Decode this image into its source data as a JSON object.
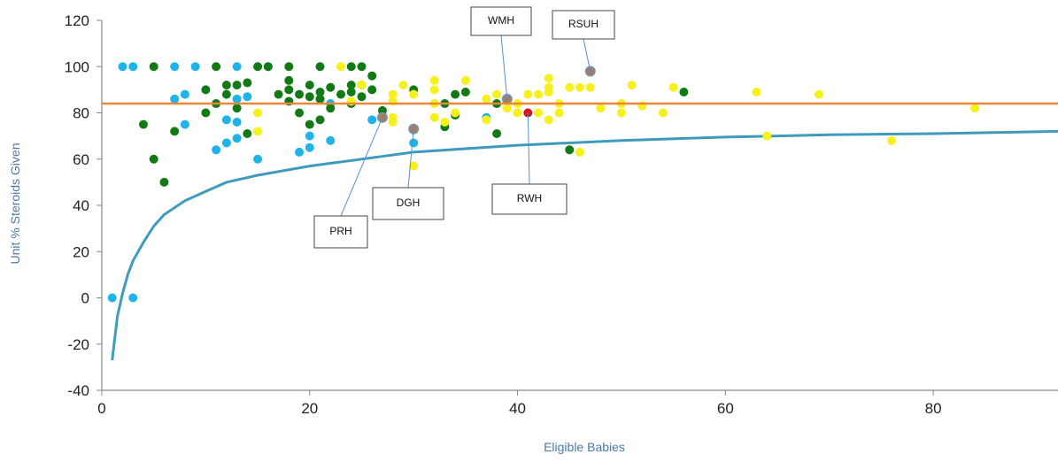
{
  "chart_data": {
    "type": "scatter",
    "title": "",
    "xlabel": "Eligible Babies",
    "ylabel": "Unit % Steroids Given",
    "xlim": [
      0,
      92
    ],
    "ylim": [
      -40,
      120
    ],
    "x_ticks": [
      "0",
      "20",
      "40",
      "60",
      "80"
    ],
    "x_tick_values": [
      0,
      20,
      40,
      60,
      80
    ],
    "y_ticks": [
      "120",
      "100",
      "80",
      "60",
      "40",
      "20",
      "0",
      "-20",
      "-40"
    ],
    "y_tick_values": [
      120,
      100,
      80,
      60,
      40,
      20,
      0,
      -20,
      -40
    ],
    "grid": false,
    "reference_line": {
      "value": 84,
      "color": "#e8873a"
    },
    "funnel_curve": {
      "color": "#3f9bbd",
      "points": [
        [
          1,
          -27
        ],
        [
          1.5,
          -8
        ],
        [
          2,
          2
        ],
        [
          2.5,
          10
        ],
        [
          3,
          16
        ],
        [
          4,
          24
        ],
        [
          5,
          31
        ],
        [
          6,
          36
        ],
        [
          8,
          42
        ],
        [
          10,
          46
        ],
        [
          12,
          50
        ],
        [
          15,
          53
        ],
        [
          20,
          57
        ],
        [
          25,
          60
        ],
        [
          30,
          63
        ],
        [
          40,
          66
        ],
        [
          50,
          68
        ],
        [
          60,
          69.5
        ],
        [
          70,
          70.5
        ],
        [
          80,
          71
        ],
        [
          92,
          72
        ]
      ]
    },
    "series": [
      {
        "color": "#1eb4ea",
        "points": [
          [
            1,
            0
          ],
          [
            3,
            0
          ],
          [
            2,
            100
          ],
          [
            3,
            100
          ],
          [
            7,
            100
          ],
          [
            9,
            100
          ],
          [
            13,
            100
          ],
          [
            16,
            100
          ],
          [
            7,
            86
          ],
          [
            8,
            88
          ],
          [
            8,
            75
          ],
          [
            11,
            64
          ],
          [
            12,
            67
          ],
          [
            13,
            69
          ],
          [
            12,
            77
          ],
          [
            13,
            76
          ],
          [
            15,
            60
          ],
          [
            19,
            63
          ],
          [
            20,
            65
          ],
          [
            20,
            70
          ],
          [
            22,
            68
          ],
          [
            13,
            86
          ],
          [
            14,
            87
          ],
          [
            22,
            84
          ],
          [
            26,
            77
          ],
          [
            30,
            67
          ],
          [
            37,
            78
          ]
        ]
      },
      {
        "color": "#127a14",
        "points": [
          [
            4,
            75
          ],
          [
            5,
            100
          ],
          [
            5,
            60
          ],
          [
            6,
            50
          ],
          [
            7,
            72
          ],
          [
            10,
            90
          ],
          [
            10,
            80
          ],
          [
            11,
            100
          ],
          [
            11,
            84
          ],
          [
            12,
            92
          ],
          [
            12,
            88
          ],
          [
            13,
            92
          ],
          [
            13,
            82
          ],
          [
            14,
            93
          ],
          [
            14,
            71
          ],
          [
            15,
            100
          ],
          [
            16,
            100
          ],
          [
            17,
            88
          ],
          [
            18,
            100
          ],
          [
            18,
            94
          ],
          [
            18,
            90
          ],
          [
            18,
            85
          ],
          [
            19,
            88
          ],
          [
            19,
            80
          ],
          [
            20,
            92
          ],
          [
            20,
            87
          ],
          [
            20,
            75
          ],
          [
            21,
            100
          ],
          [
            21,
            89
          ],
          [
            21,
            86
          ],
          [
            21,
            77
          ],
          [
            22,
            91
          ],
          [
            22,
            82
          ],
          [
            23,
            88
          ],
          [
            24,
            100
          ],
          [
            24,
            92
          ],
          [
            24,
            89
          ],
          [
            24,
            84
          ],
          [
            25,
            100
          ],
          [
            25,
            92
          ],
          [
            25,
            87
          ],
          [
            26,
            96
          ],
          [
            26,
            90
          ],
          [
            27,
            81
          ],
          [
            30,
            90
          ],
          [
            33,
            84
          ],
          [
            33,
            74
          ],
          [
            34,
            88
          ],
          [
            34,
            79
          ],
          [
            35,
            89
          ],
          [
            38,
            71
          ],
          [
            38,
            84
          ],
          [
            45,
            64
          ],
          [
            56,
            89
          ]
        ]
      },
      {
        "color": "#f6f01c",
        "points": [
          [
            15,
            80
          ],
          [
            15,
            72
          ],
          [
            23,
            100
          ],
          [
            24,
            85
          ],
          [
            25,
            92
          ],
          [
            28,
            88
          ],
          [
            28,
            85
          ],
          [
            28,
            78
          ],
          [
            28,
            76
          ],
          [
            29,
            92
          ],
          [
            30,
            88
          ],
          [
            30,
            57
          ],
          [
            32,
            94
          ],
          [
            32,
            90
          ],
          [
            32,
            84
          ],
          [
            32,
            78
          ],
          [
            33,
            76
          ],
          [
            34,
            80
          ],
          [
            35,
            94
          ],
          [
            37,
            86
          ],
          [
            37,
            77
          ],
          [
            38,
            88
          ],
          [
            39,
            82
          ],
          [
            40,
            84
          ],
          [
            40,
            80
          ],
          [
            41,
            88
          ],
          [
            42,
            88
          ],
          [
            42,
            80
          ],
          [
            43,
            95
          ],
          [
            43,
            91
          ],
          [
            43,
            89
          ],
          [
            43,
            77
          ],
          [
            44,
            84
          ],
          [
            44,
            80
          ],
          [
            45,
            91
          ],
          [
            46,
            91
          ],
          [
            46,
            63
          ],
          [
            47,
            91
          ],
          [
            48,
            82
          ],
          [
            50,
            80
          ],
          [
            50,
            84
          ],
          [
            51,
            92
          ],
          [
            52,
            83
          ],
          [
            54,
            80
          ],
          [
            55,
            91
          ],
          [
            63,
            89
          ],
          [
            64,
            70
          ],
          [
            69,
            88
          ],
          [
            76,
            68
          ],
          [
            84,
            82
          ]
        ]
      },
      {
        "color": "#d8141e",
        "points": [
          [
            41,
            80
          ]
        ]
      },
      {
        "color": "#a87a5a",
        "points": [
          [
            27,
            78
          ],
          [
            30,
            73
          ],
          [
            39,
            86
          ],
          [
            47,
            98
          ]
        ]
      }
    ],
    "annotations": [
      {
        "label": "WMH",
        "x": 39,
        "y": 86
      },
      {
        "label": "RSUH",
        "x": 47,
        "y": 98
      },
      {
        "label": "PRH",
        "x": 27,
        "y": 78
      },
      {
        "label": "DGH",
        "x": 30,
        "y": 73
      },
      {
        "label": "RWH",
        "x": 41,
        "y": 80
      }
    ]
  }
}
